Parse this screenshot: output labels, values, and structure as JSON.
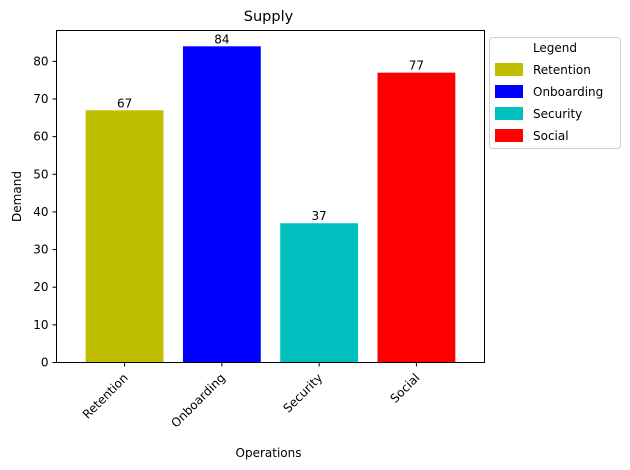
{
  "chart_data": {
    "type": "bar",
    "title": "Supply",
    "xlabel": "Operations",
    "ylabel": "Demand",
    "categories": [
      "Retention",
      "Onboarding",
      "Security",
      "Social"
    ],
    "values": [
      67,
      84,
      37,
      77
    ],
    "colors": [
      "#bfbf00",
      "#0000ff",
      "#00bfbf",
      "#ff0000"
    ],
    "ylim": [
      0,
      88.2
    ],
    "yticks": [
      0,
      10,
      20,
      30,
      40,
      50,
      60,
      70,
      80
    ],
    "grid": false,
    "legend": {
      "title": "Legend",
      "placement": "outside-upper-right",
      "entries": [
        "Retention",
        "Onboarding",
        "Security",
        "Social"
      ]
    }
  }
}
